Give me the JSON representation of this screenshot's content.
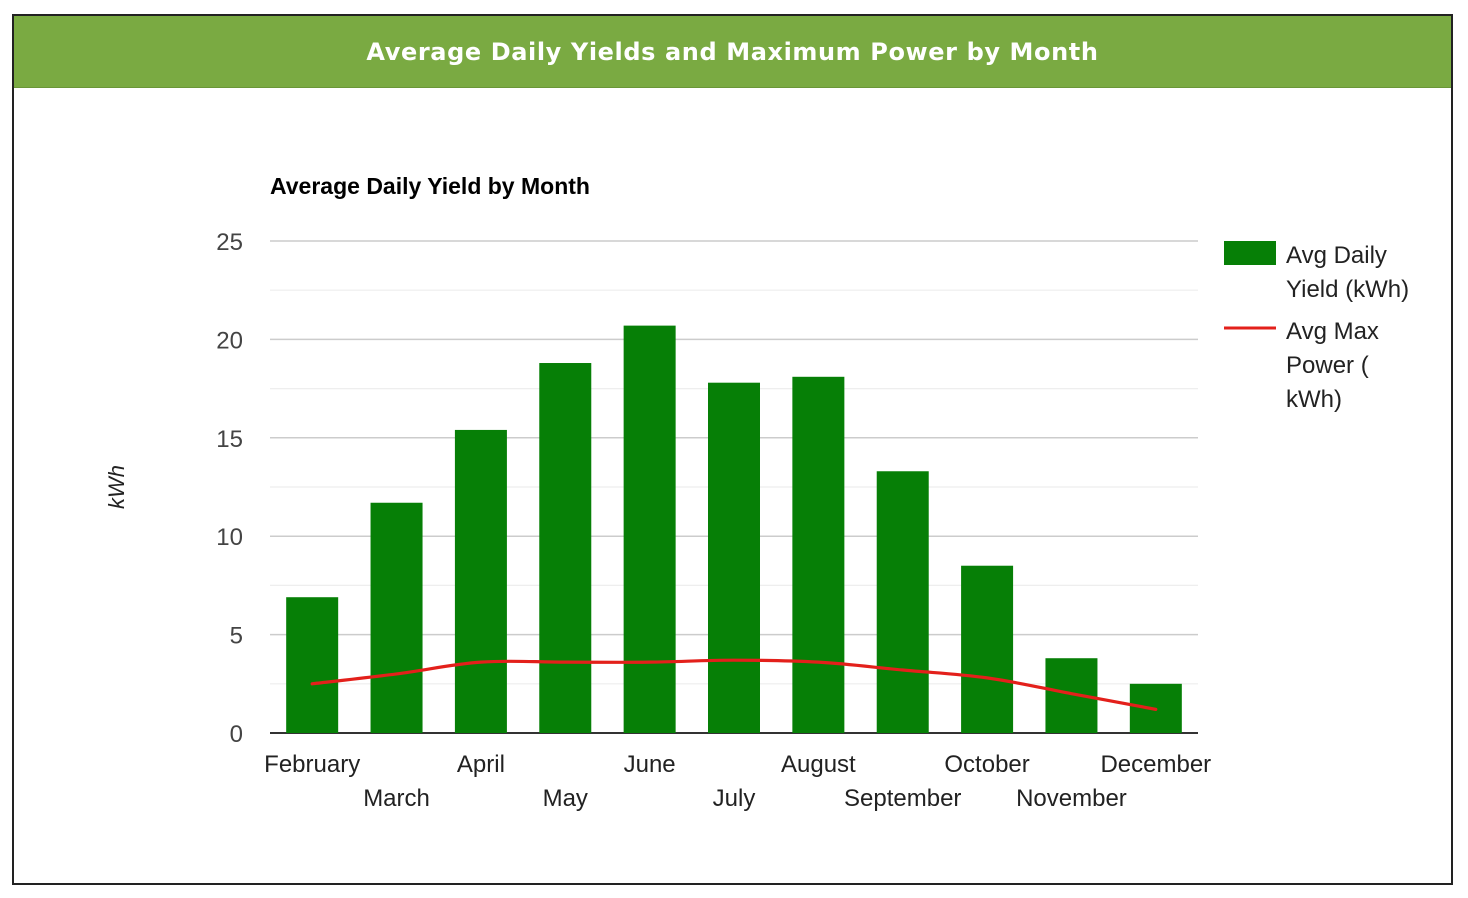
{
  "panel": {
    "title": "Average Daily Yields and Maximum Power by Month"
  },
  "colors": {
    "header_bg": "#7aaa42",
    "bar": "#067f06",
    "line": "#e3201b",
    "grid": "#cccccc",
    "minor_grid": "#eeeeee"
  },
  "chart_data": {
    "type": "bar",
    "title": "Average Daily Yield by Month",
    "xlabel": "",
    "ylabel": "kWh",
    "ylim": [
      0,
      25
    ],
    "yticks": [
      0,
      5,
      10,
      15,
      20,
      25
    ],
    "grid": true,
    "legend_position": "right",
    "categories": [
      "February",
      "March",
      "April",
      "May",
      "June",
      "July",
      "August",
      "September",
      "October",
      "November",
      "December"
    ],
    "series": [
      {
        "name": "Avg Daily Yield (kWh)",
        "type": "bar",
        "values": [
          6.9,
          11.7,
          15.4,
          18.8,
          20.7,
          17.8,
          18.1,
          13.3,
          8.5,
          3.8,
          2.5
        ]
      },
      {
        "name": "Avg Max Power ( kWh)",
        "legend_lines": [
          "Avg Max",
          "Power (",
          "kWh)"
        ],
        "type": "line",
        "values": [
          2.5,
          3.0,
          3.6,
          3.6,
          3.6,
          3.7,
          3.6,
          3.2,
          2.8,
          2.0,
          1.2
        ]
      }
    ]
  }
}
